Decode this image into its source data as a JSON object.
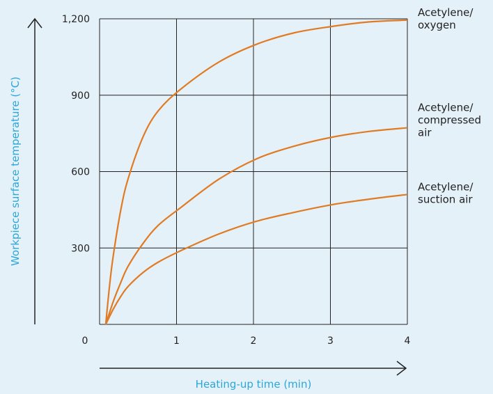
{
  "chart_data": {
    "type": "line",
    "xlabel": "Heating-up time (min)",
    "ylabel": "Workpiece surface temperature (°C)",
    "xlim": [
      0,
      4
    ],
    "ylim": [
      0,
      1200
    ],
    "x_ticks": [
      "0",
      "1",
      "2",
      "3",
      "4"
    ],
    "y_ticks": [
      "",
      "300",
      "600",
      "900",
      "1,200"
    ],
    "grid": true,
    "colors": {
      "line": "#e07b24",
      "axis_title": "#2aa7d8",
      "grid": "#222222",
      "background": "#e5f1f8"
    },
    "series": [
      {
        "name": "Acetylene/ oxygen",
        "label_lines": [
          "Acetylene/",
          "oxygen"
        ],
        "x": [
          0,
          0.05,
          0.1,
          0.2,
          0.3,
          0.5,
          0.7,
          1.0,
          1.5,
          2.0,
          2.5,
          3.0,
          3.5,
          4.0
        ],
        "y": [
          0,
          150,
          270,
          450,
          575,
          740,
          840,
          925,
          1030,
          1100,
          1145,
          1170,
          1188,
          1195
        ]
      },
      {
        "name": "Acetylene/ compressed air",
        "label_lines": [
          "Acetylene/",
          "compressed",
          "air"
        ],
        "x": [
          0,
          0.1,
          0.2,
          0.3,
          0.5,
          0.7,
          1.0,
          1.5,
          2.0,
          2.5,
          3.0,
          3.5,
          4.0
        ],
        "y": [
          0,
          90,
          165,
          230,
          320,
          390,
          460,
          570,
          650,
          700,
          735,
          758,
          772
        ]
      },
      {
        "name": "Acetylene/ suction air",
        "label_lines": [
          "Acetylene/",
          "suction air"
        ],
        "x": [
          0,
          0.1,
          0.2,
          0.3,
          0.5,
          0.7,
          1.0,
          1.5,
          2.0,
          2.5,
          3.0,
          3.5,
          4.0
        ],
        "y": [
          0,
          60,
          110,
          150,
          205,
          245,
          290,
          355,
          405,
          440,
          470,
          492,
          510
        ]
      }
    ]
  }
}
